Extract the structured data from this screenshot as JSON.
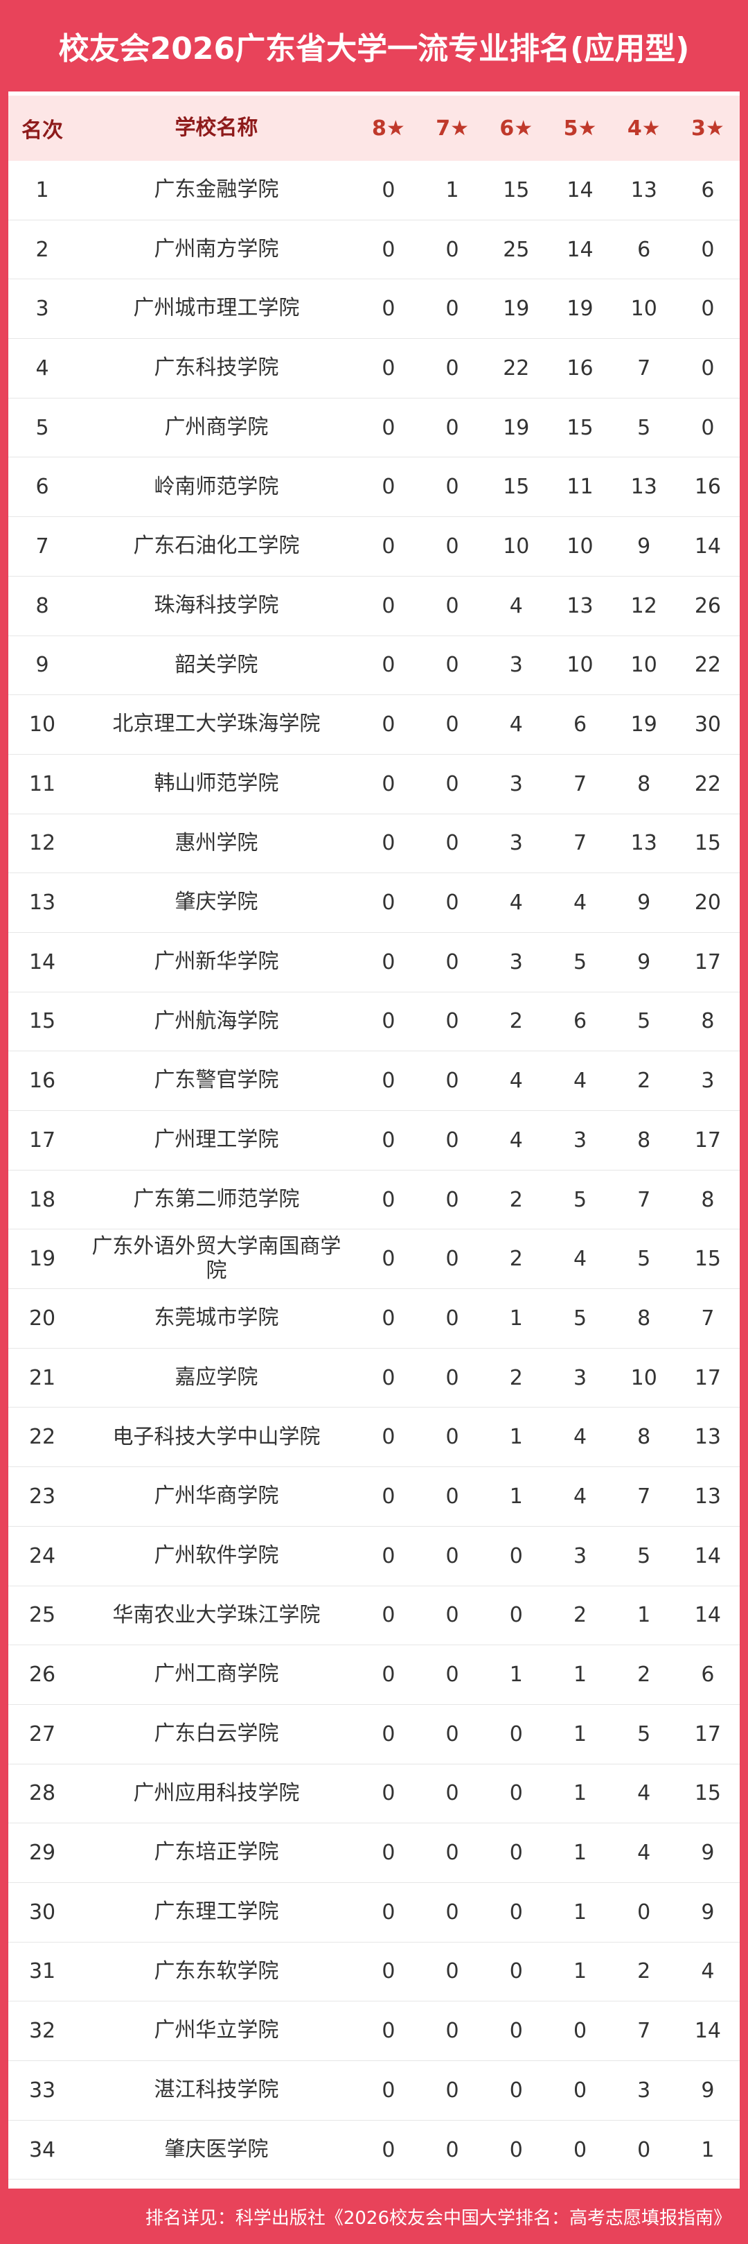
{
  "header": {
    "title": "校友会2026广东省大学一流专业排名(应用型)"
  },
  "table": {
    "columns": [
      "名次",
      "学校名称",
      "8★",
      "7★",
      "6★",
      "5★",
      "4★",
      "3★"
    ],
    "rows": [
      [
        1,
        "广东金融学院",
        0,
        1,
        15,
        14,
        13,
        6
      ],
      [
        2,
        "广州南方学院",
        0,
        0,
        25,
        14,
        6,
        0
      ],
      [
        3,
        "广州城市理工学院",
        0,
        0,
        19,
        19,
        10,
        0
      ],
      [
        4,
        "广东科技学院",
        0,
        0,
        22,
        16,
        7,
        0
      ],
      [
        5,
        "广州商学院",
        0,
        0,
        19,
        15,
        5,
        0
      ],
      [
        6,
        "岭南师范学院",
        0,
        0,
        15,
        11,
        13,
        16
      ],
      [
        7,
        "广东石油化工学院",
        0,
        0,
        10,
        10,
        9,
        14
      ],
      [
        8,
        "珠海科技学院",
        0,
        0,
        4,
        13,
        12,
        26
      ],
      [
        9,
        "韶关学院",
        0,
        0,
        3,
        10,
        10,
        22
      ],
      [
        10,
        "北京理工大学珠海学院",
        0,
        0,
        4,
        6,
        19,
        30
      ],
      [
        11,
        "韩山师范学院",
        0,
        0,
        3,
        7,
        8,
        22
      ],
      [
        12,
        "惠州学院",
        0,
        0,
        3,
        7,
        13,
        15
      ],
      [
        13,
        "肇庆学院",
        0,
        0,
        4,
        4,
        9,
        20
      ],
      [
        14,
        "广州新华学院",
        0,
        0,
        3,
        5,
        9,
        17
      ],
      [
        15,
        "广州航海学院",
        0,
        0,
        2,
        6,
        5,
        8
      ],
      [
        16,
        "广东警官学院",
        0,
        0,
        4,
        4,
        2,
        3
      ],
      [
        17,
        "广州理工学院",
        0,
        0,
        4,
        3,
        8,
        17
      ],
      [
        18,
        "广东第二师范学院",
        0,
        0,
        2,
        5,
        7,
        8
      ],
      [
        19,
        "广东外语外贸大学南国商学院",
        0,
        0,
        2,
        4,
        5,
        15
      ],
      [
        20,
        "东莞城市学院",
        0,
        0,
        1,
        5,
        8,
        7
      ],
      [
        21,
        "嘉应学院",
        0,
        0,
        2,
        3,
        10,
        17
      ],
      [
        22,
        "电子科技大学中山学院",
        0,
        0,
        1,
        4,
        8,
        13
      ],
      [
        23,
        "广州华商学院",
        0,
        0,
        1,
        4,
        7,
        13
      ],
      [
        24,
        "广州软件学院",
        0,
        0,
        0,
        3,
        5,
        14
      ],
      [
        25,
        "华南农业大学珠江学院",
        0,
        0,
        0,
        2,
        1,
        14
      ],
      [
        26,
        "广州工商学院",
        0,
        0,
        1,
        1,
        2,
        6
      ],
      [
        27,
        "广东白云学院",
        0,
        0,
        0,
        1,
        5,
        17
      ],
      [
        28,
        "广州应用科技学院",
        0,
        0,
        0,
        1,
        4,
        15
      ],
      [
        29,
        "广东培正学院",
        0,
        0,
        0,
        1,
        4,
        9
      ],
      [
        30,
        "广东理工学院",
        0,
        0,
        0,
        1,
        0,
        9
      ],
      [
        31,
        "广东东软学院",
        0,
        0,
        0,
        1,
        2,
        4
      ],
      [
        32,
        "广州华立学院",
        0,
        0,
        0,
        0,
        7,
        14
      ],
      [
        33,
        "湛江科技学院",
        0,
        0,
        0,
        0,
        3,
        9
      ],
      [
        34,
        "肇庆医学院",
        0,
        0,
        0,
        0,
        0,
        1
      ]
    ]
  },
  "footer": {
    "note": "排名详见：科学出版社《2026校友会中国大学排名：高考志愿填报指南》"
  }
}
